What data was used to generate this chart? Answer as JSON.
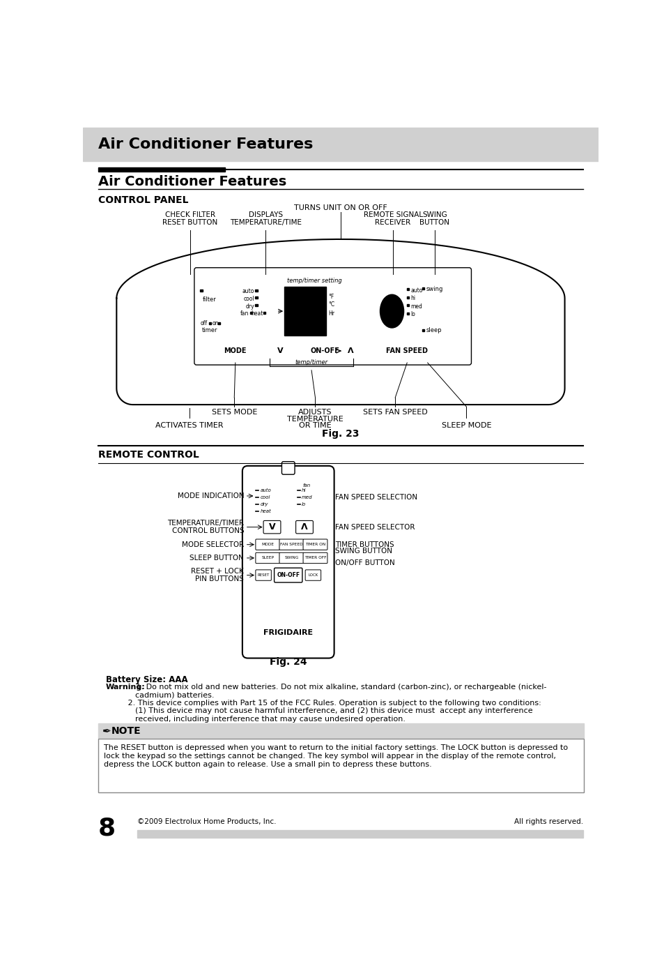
{
  "page_title": "Air Conditioner Features",
  "section1_title": "Air Conditioner Features",
  "cp_title": "CONTROL PANEL",
  "rc_title": "REMOTE CONTROL",
  "fig23_caption": "Fig. 23",
  "fig24_caption": "Fig. 24",
  "battery_label": "Battery Size: AAA",
  "footer_left": "©2009 Electrolux Home Products, Inc.",
  "footer_right": "All rights reserved.",
  "page_number": "8",
  "header_bg": "#d0d0d0",
  "note_bg": "#d4d4d4",
  "footer_bar_bg": "#cccccc",
  "turns_unit": "TURNS UNIT ON OR OFF",
  "check_filter_1": "CHECK FILTER",
  "check_filter_2": "RESET BUTTON",
  "displays_1": "DISPLAYS",
  "displays_2": "TEMPERATURE/TIME",
  "remote_sig_1": "REMOTE SIGNAL",
  "remote_sig_2": "RECEIVER",
  "swing_btn_1": "SWING",
  "swing_btn_2": "BUTTON",
  "sets_mode": "SETS MODE",
  "activates_timer": "ACTIVATES TIMER",
  "adjusts_1": "ADJUSTS",
  "adjusts_2": "TEMPERATURE",
  "adjusts_3": "OR TIME",
  "sets_fan": "SETS FAN SPEED",
  "sleep_mode": "SLEEP MODE",
  "mode_lbl": "MODE",
  "v_lbl": "V",
  "on_off_lbl": "ON-OFF",
  "lambda_lbl": "Λ",
  "fan_speed_lbl": "FAN SPEED",
  "temp_timer_lbl": "temp/timer",
  "filter_lbl": "filter",
  "timer_lbl": "timer",
  "off_lbl": "off",
  "on_lbl": "on",
  "swing_lbl": "swing",
  "sleep_lbl": "sleep",
  "temp_timer_setting": "temp/timer setting",
  "frigidaire": "FRIGIDAIRE",
  "rc_mode_indicators": [
    "auto",
    "cool",
    "dry",
    "heat"
  ],
  "rc_fan_indicators": [
    "fan",
    "hi",
    "med",
    "lo"
  ],
  "rc_row2_btns": [
    "MODE",
    "FAN SPEED",
    "TIMER ON"
  ],
  "rc_row3_btns": [
    "SLEEP",
    "SWING",
    "TIMER OFF"
  ],
  "rc_reset": "RESET",
  "rc_on_off": "ON-OFF",
  "rc_lock": "LOCK",
  "rc_lbl_mode_indication": "MODE INDICATION",
  "rc_lbl_temp_timer_1": "TEMPERATURE/TIMER",
  "rc_lbl_temp_timer_2": "CONTROL BUTTONS",
  "rc_lbl_mode_sel": "MODE SELECTOR",
  "rc_lbl_sleep": "SLEEP BUTTON",
  "rc_lbl_reset_lock_1": "RESET + LOCK",
  "rc_lbl_reset_lock_2": "PIN BUTTONS",
  "rc_lbl_fan_sel": "FAN SPEED SELECTION",
  "rc_lbl_fan_speed_sel": "FAN SPEED SELECTOR",
  "rc_lbl_timer": "TIMER BUTTONS",
  "rc_lbl_swing": "SWING BUTTON",
  "rc_lbl_onoff": "ON/OFF BUTTON",
  "note_title": "NOTE",
  "note_text1": "The RESET button is depressed when you want to return to the initial factory settings. The LOCK button is depressed to",
  "note_text2": "lock the keypad so the settings cannot be changed. The key symbol will appear in the display of the remote control,",
  "note_text3": "depress the LOCK button again to release. Use a small pin to depress these buttons.",
  "warn_prefix": "Warning:",
  "warn_line1": " 1. Do not mix old and new batteries. Do not mix alkaline, standard (carbon-zinc), or rechargeable (nickel-",
  "warn_line2": "            cadmium) batteries.",
  "warn_line3": "         2. This device complies with Part 15 of the FCC Rules. Operation is subject to the following two conditions:",
  "warn_line4": "            (1) This device may not cause harmful interference, and (2) this device must  accept any interference",
  "warn_line5": "            received, including interference that may cause undesired operation."
}
